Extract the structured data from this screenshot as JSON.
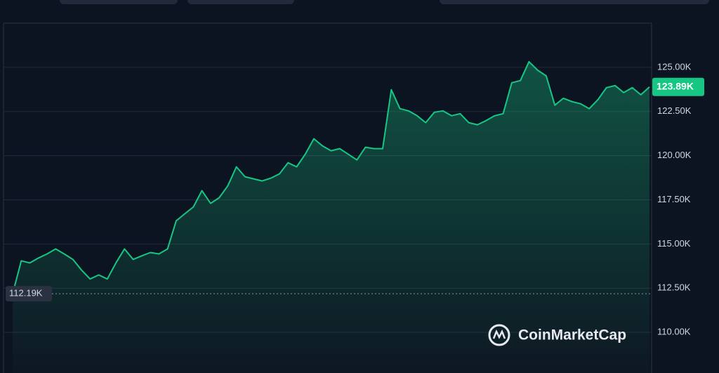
{
  "chart_data": {
    "type": "area",
    "color": "#16c784",
    "brand": "CoinMarketCap",
    "values": [
      112190,
      114050,
      113930,
      114210,
      114440,
      114720,
      114440,
      114130,
      113530,
      113020,
      113250,
      113020,
      113930,
      114720,
      114130,
      114330,
      114520,
      114440,
      114720,
      116310,
      116710,
      117100,
      118020,
      117300,
      117620,
      118290,
      119370,
      118810,
      118690,
      118570,
      118730,
      118970,
      119600,
      119370,
      120080,
      120960,
      120560,
      120280,
      120400,
      120080,
      119760,
      120480,
      120400,
      120400,
      123730,
      122660,
      122540,
      122260,
      121870,
      122460,
      122540,
      122260,
      122380,
      121870,
      121750,
      121980,
      122260,
      122380,
      124130,
      124250,
      125320,
      124840,
      124520,
      122860,
      123250,
      123060,
      122940,
      122660,
      123170,
      123850,
      123970,
      123570,
      123850,
      123450,
      123890
    ],
    "ylim": [
      107700,
      127500
    ],
    "yticks": [
      {
        "value": 110000,
        "label": "110.00K"
      },
      {
        "value": 112500,
        "label": "112.50K"
      },
      {
        "value": 115000,
        "label": "115.00K"
      },
      {
        "value": 117500,
        "label": "117.50K"
      },
      {
        "value": 120000,
        "label": "120.00K"
      },
      {
        "value": 122500,
        "label": "122.50K"
      },
      {
        "value": 125000,
        "label": "125.00K"
      }
    ],
    "grid": true,
    "start_line": {
      "value": 112190,
      "label": "112.19K"
    },
    "last_price": {
      "value": 123890,
      "label": "123.89K"
    }
  }
}
